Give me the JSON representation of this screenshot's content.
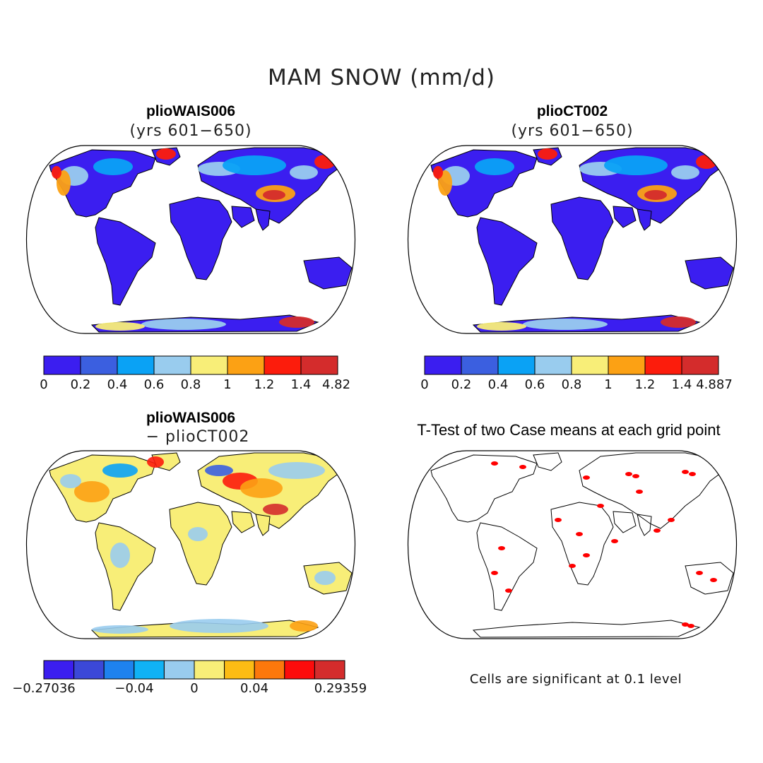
{
  "title": "MAM SNOW (mm/d)",
  "panels": [
    {
      "id": "p1",
      "title": "plioWAIS006",
      "subtitle": "(yrs 601−650)",
      "type": "field"
    },
    {
      "id": "p2",
      "title": "plioCT002",
      "subtitle": "(yrs 601−650)",
      "type": "field"
    },
    {
      "id": "p3",
      "title": "plioWAIS006",
      "subtitle": "− plioCT002",
      "type": "difference"
    },
    {
      "id": "p4",
      "title": "T-Test of two Case means at each grid point",
      "type": "significance"
    }
  ],
  "colorbars": [
    {
      "id": "cb1",
      "colors": [
        "#3b1ef0",
        "#3b5fe0",
        "#0aa2f5",
        "#99ccee",
        "#f8ee78",
        "#fca114",
        "#fc1c0c",
        "#d42c2c"
      ],
      "labels": [
        "0",
        "0.2",
        "0.4",
        "0.6",
        "0.8",
        "1",
        "1.2",
        "1.4",
        "4.82"
      ]
    },
    {
      "id": "cb2",
      "colors": [
        "#3b1ef0",
        "#3b5fe0",
        "#0aa2f5",
        "#99ccee",
        "#f8ee78",
        "#fca114",
        "#fc1c0c",
        "#d42c2c"
      ],
      "labels": [
        "0",
        "0.2",
        "0.4",
        "0.6",
        "0.8",
        "1",
        "1.2",
        "1.4",
        "4.887"
      ]
    },
    {
      "id": "cb3",
      "colors": [
        "#3b1ef0",
        "#3b48d8",
        "#1e82ee",
        "#10b2f5",
        "#99ccee",
        "#f8ee78",
        "#fcbc14",
        "#fc780c",
        "#fc0c0c",
        "#d42c2c"
      ],
      "labels": [
        "−0.27036",
        "−0.04",
        "0",
        "0.04",
        "0.29359"
      ]
    }
  ],
  "note": "Cells are significant at 0.1 level",
  "colors": {
    "low": "#3b1ef0",
    "blue_mid": "#3b5fe0",
    "blue_light": "#0aa2f5",
    "pale_blue": "#99ccee",
    "yellow": "#f8ee78",
    "orange": "#fca114",
    "red": "#fc1c0c",
    "dark_red": "#d42c2c",
    "significant": "#ff0000"
  }
}
